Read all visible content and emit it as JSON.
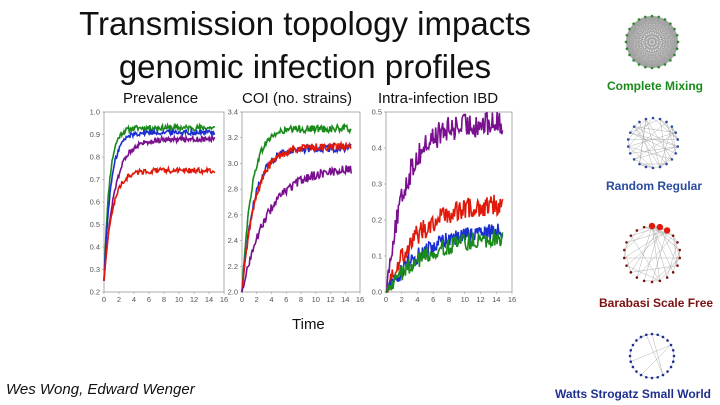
{
  "title_line1": "Transmission topology impacts",
  "title_line2": "genomic infection profiles",
  "xlabel": "Time",
  "authors": "Wes Wong, Edward Wenger",
  "colors": {
    "green": "#1a8a1a",
    "blue": "#1a2fd0",
    "purple": "#7a0f8f",
    "red": "#e01a0a"
  },
  "networks": [
    {
      "label": "Complete Mixing",
      "color": "#1a8a1a"
    },
    {
      "label": "Random Regular",
      "color": "#2b4aa0"
    },
    {
      "label": "Barabasi Scale Free",
      "color": "#7a1010"
    },
    {
      "label": "Watts Strogatz Small World",
      "color": "#1f2f8f"
    }
  ],
  "chart_data": [
    {
      "type": "line",
      "title": "Prevalence",
      "xlabel": "Time",
      "x_ticks": [
        "0",
        "2",
        "4",
        "6",
        "8",
        "10",
        "12",
        "14",
        "16"
      ],
      "y_ticks": [
        "0.2",
        "0.3",
        "0.4",
        "0.5",
        "0.6",
        "0.7",
        "0.8",
        "0.9",
        "1.0"
      ],
      "xlim": [
        0,
        16
      ],
      "ylim": [
        0.2,
        1.0
      ],
      "series": [
        {
          "name": "Complete Mixing",
          "color": "#1a8a1a",
          "start": 0.25,
          "final": 0.93,
          "rate": 1.4,
          "noise": 0.004
        },
        {
          "name": "Random Regular",
          "color": "#1a2fd0",
          "start": 0.25,
          "final": 0.91,
          "rate": 1.1,
          "noise": 0.004
        },
        {
          "name": "Watts Strogatz Small World",
          "color": "#7a0f8f",
          "start": 0.25,
          "final": 0.88,
          "rate": 0.7,
          "noise": 0.004
        },
        {
          "name": "Barabasi Scale Free",
          "color": "#e01a0a",
          "start": 0.25,
          "final": 0.74,
          "rate": 0.9,
          "noise": 0.004
        }
      ]
    },
    {
      "type": "line",
      "title": "COI (no. strains)",
      "xlabel": "Time",
      "x_ticks": [
        "0",
        "2",
        "4",
        "6",
        "8",
        "10",
        "12",
        "14",
        "16"
      ],
      "y_ticks": [
        "2.0",
        "2.2",
        "2.4",
        "2.6",
        "2.8",
        "3.0",
        "3.2",
        "3.4"
      ],
      "xlim": [
        0,
        16
      ],
      "ylim": [
        2.0,
        3.4
      ],
      "series": [
        {
          "name": "Complete Mixing",
          "color": "#1a8a1a",
          "start": 2.0,
          "final": 3.27,
          "rate": 0.75,
          "noise": 0.01
        },
        {
          "name": "Random Regular",
          "color": "#1a2fd0",
          "start": 2.0,
          "final": 3.12,
          "rate": 0.6,
          "noise": 0.01
        },
        {
          "name": "Barabasi Scale Free",
          "color": "#e01a0a",
          "start": 2.0,
          "final": 3.13,
          "rate": 0.55,
          "noise": 0.01
        },
        {
          "name": "Watts Strogatz Small World",
          "color": "#7a0f8f",
          "start": 2.0,
          "final": 2.97,
          "rate": 0.28,
          "noise": 0.012
        }
      ]
    },
    {
      "type": "line",
      "title": "Intra-infection IBD",
      "xlabel": "Time",
      "x_ticks": [
        "0",
        "2",
        "4",
        "6",
        "8",
        "10",
        "12",
        "14",
        "16"
      ],
      "y_ticks": [
        "0.0",
        "0.1",
        "0.2",
        "0.3",
        "0.4",
        "0.5"
      ],
      "xlim": [
        0,
        16
      ],
      "ylim": [
        0,
        0.5
      ],
      "series": [
        {
          "name": "Watts Strogatz Small World",
          "color": "#7a0f8f",
          "start": 0.0,
          "final": 0.47,
          "rate": 0.4,
          "noise": 0.012
        },
        {
          "name": "Barabasi Scale Free",
          "color": "#e01a0a",
          "start": 0.0,
          "final": 0.25,
          "rate": 0.25,
          "noise": 0.01
        },
        {
          "name": "Random Regular",
          "color": "#1a2fd0",
          "start": 0.0,
          "final": 0.18,
          "rate": 0.2,
          "noise": 0.008
        },
        {
          "name": "Complete Mixing",
          "color": "#1a8a1a",
          "start": 0.0,
          "final": 0.16,
          "rate": 0.2,
          "noise": 0.008
        }
      ]
    }
  ]
}
